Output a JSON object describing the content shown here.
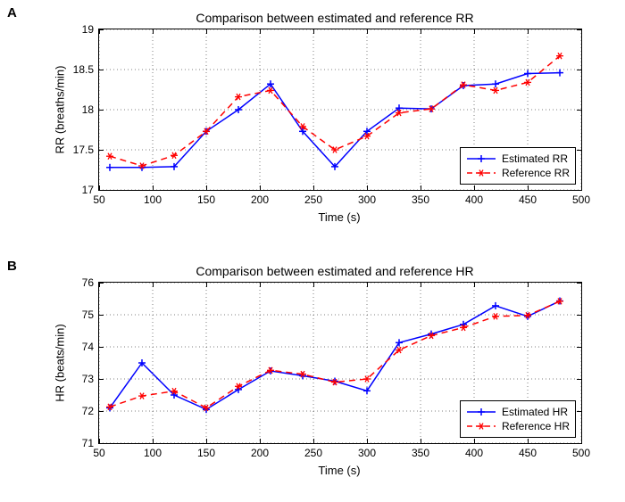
{
  "panels": {
    "A": {
      "label": "A",
      "title": "Comparison between estimated and reference RR",
      "xlabel": "Time (s)",
      "ylabel": "RR (breaths/min)",
      "xlim": [
        50,
        500
      ],
      "ylim": [
        17,
        19
      ],
      "xtick_step": 50,
      "ytick_step": 0.5,
      "grid_color": "#000000",
      "background_color": "#ffffff",
      "series": [
        {
          "name": "Estimated RR",
          "color": "#0000ff",
          "marker": "plus",
          "line_style": "solid",
          "line_width": 1.5,
          "x": [
            60,
            90,
            120,
            150,
            180,
            210,
            240,
            270,
            300,
            330,
            360,
            390,
            420,
            450,
            480
          ],
          "y": [
            17.28,
            17.28,
            17.29,
            17.73,
            18.0,
            18.32,
            17.73,
            17.29,
            17.73,
            18.02,
            18.01,
            18.3,
            18.32,
            18.45,
            18.46
          ]
        },
        {
          "name": "Reference RR",
          "color": "#ff0000",
          "marker": "star",
          "line_style": "dashed",
          "line_width": 1.5,
          "x": [
            60,
            90,
            120,
            150,
            180,
            210,
            240,
            270,
            300,
            330,
            360,
            390,
            420,
            450,
            480
          ],
          "y": [
            17.42,
            17.3,
            17.43,
            17.73,
            18.16,
            18.24,
            17.79,
            17.5,
            17.67,
            17.96,
            18.01,
            18.31,
            18.24,
            18.34,
            18.67
          ]
        }
      ],
      "legend": {
        "position": "bottom-right",
        "entries": [
          "Estimated RR",
          "Reference RR"
        ]
      },
      "title_fontsize": 14,
      "label_fontsize": 13,
      "tick_fontsize": 12
    },
    "B": {
      "label": "B",
      "title": "Comparison between estimated and reference HR",
      "xlabel": "Time (s)",
      "ylabel": "HR (beats/min)",
      "xlim": [
        50,
        500
      ],
      "ylim": [
        71,
        76
      ],
      "xtick_step": 50,
      "ytick_step": 1,
      "grid_color": "#000000",
      "background_color": "#ffffff",
      "series": [
        {
          "name": "Estimated HR",
          "color": "#0000ff",
          "marker": "plus",
          "line_style": "solid",
          "line_width": 1.5,
          "x": [
            60,
            90,
            120,
            150,
            180,
            210,
            240,
            270,
            300,
            330,
            360,
            390,
            420,
            450,
            480
          ],
          "y": [
            72.1,
            73.5,
            72.5,
            72.05,
            72.67,
            73.25,
            73.1,
            72.93,
            72.63,
            74.13,
            74.4,
            74.7,
            75.28,
            74.95,
            75.43
          ]
        },
        {
          "name": "Reference HR",
          "color": "#ff0000",
          "marker": "star",
          "line_style": "dashed",
          "line_width": 1.5,
          "x": [
            60,
            90,
            120,
            150,
            180,
            210,
            240,
            270,
            300,
            330,
            360,
            390,
            420,
            450,
            480
          ],
          "y": [
            72.13,
            72.47,
            72.62,
            72.1,
            72.77,
            73.27,
            73.15,
            72.9,
            73.0,
            73.9,
            74.35,
            74.6,
            74.95,
            74.98,
            75.42
          ]
        }
      ],
      "legend": {
        "position": "bottom-right",
        "entries": [
          "Estimated HR",
          "Reference HR"
        ]
      },
      "title_fontsize": 14,
      "label_fontsize": 13,
      "tick_fontsize": 12
    }
  }
}
